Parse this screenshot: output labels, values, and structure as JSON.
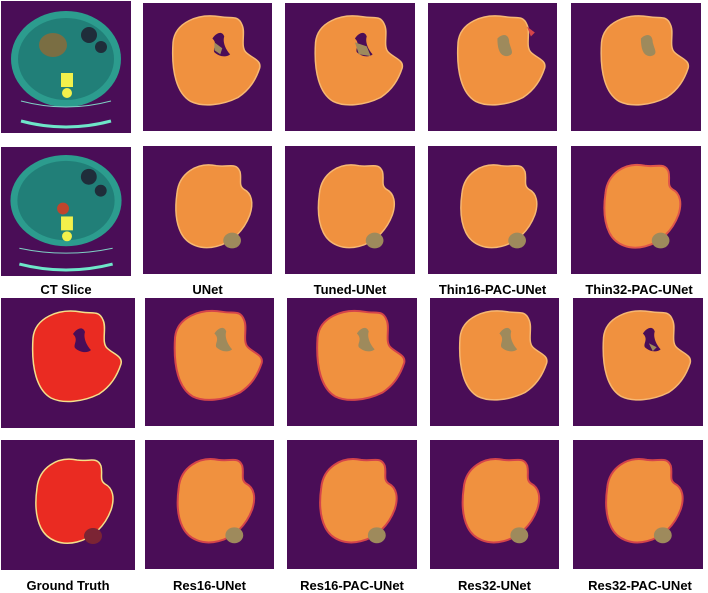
{
  "colors": {
    "background": "#4a0d57",
    "liver_prediction": "#f0913f",
    "tumor_overlap": "#9e8a5c",
    "ground_truth_liver": "#ea2b22",
    "ground_truth_tumor": "#7b2434",
    "error_edge": "#d4444a",
    "ct_body": "#2c9c8e"
  },
  "top_block": {
    "ct_caption": "CT Slice",
    "captions": [
      "UNet",
      "Tuned-UNet",
      "Thin16-PAC-UNet",
      "Thin32-PAC-UNet"
    ]
  },
  "bottom_block": {
    "gt_caption": "Ground Truth",
    "captions": [
      "Res16-UNet",
      "Res16-PAC-UNet",
      "Res32-UNet",
      "Res32-PAC-UNet"
    ]
  }
}
